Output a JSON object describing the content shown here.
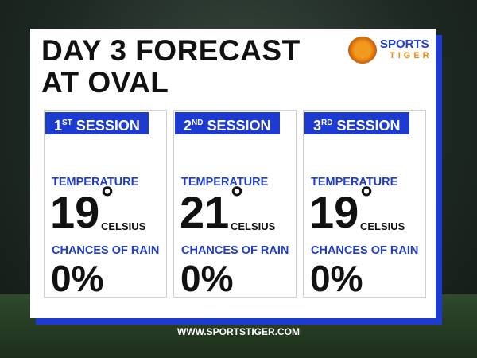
{
  "header": {
    "title_line1": "DAY 3 FORECAST",
    "title_line2": "AT OVAL",
    "logo": {
      "top": "SPORTS",
      "bottom": "TIGER"
    }
  },
  "sessions": [
    {
      "ordinal": "1",
      "suffix": "ST",
      "label": "SESSION",
      "temperature_label": "TEMPERATURE",
      "temperature": 19,
      "degree": "°",
      "unit": "CELSIUS",
      "rain_label": "CHANCES OF RAIN",
      "rain": "0%"
    },
    {
      "ordinal": "2",
      "suffix": "ND",
      "label": "SESSION",
      "temperature_label": "TEMPERATURE",
      "temperature": 21,
      "degree": "°",
      "unit": "CELSIUS",
      "rain_label": "CHANCES OF RAIN",
      "rain": "0%"
    },
    {
      "ordinal": "3",
      "suffix": "RD",
      "label": "SESSION",
      "temperature_label": "TEMPERATURE",
      "temperature": 19,
      "degree": "°",
      "unit": "CELSIUS",
      "rain_label": "CHANCES OF RAIN",
      "rain": "0%"
    }
  ],
  "footer": {
    "url": "WWW.SPORTSTIGER.COM"
  }
}
